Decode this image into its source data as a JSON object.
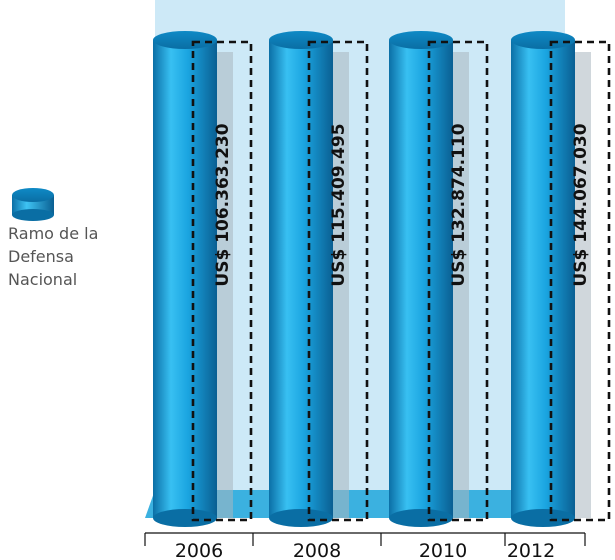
{
  "chart_data": {
    "type": "bar",
    "style": "3d-cylinder",
    "categories": [
      "2006",
      "2008",
      "2010",
      "2012"
    ],
    "series": [
      {
        "name": "Ramo de la Defensa Nacional",
        "values": [
          106363230,
          115409495,
          132874110,
          144067030
        ],
        "color": "#1aa4e0"
      }
    ],
    "data_labels": [
      "US$ 106.363.230",
      "US$ 115.409.495",
      "US$ 132.874.110",
      "US$ 144.067.030"
    ],
    "legend": {
      "entries": [
        "Ramo de la Defensa Nacional"
      ],
      "lines": [
        "Ramo de la",
        "Defensa",
        "Nacional"
      ],
      "position": "left"
    },
    "grid": false,
    "colors": {
      "cylinder": "#1aa4e0",
      "cylinder_top": "#0d7fb8",
      "back_wall": "#cde9f7",
      "floor": "#3bb1e0",
      "label_box_border": "#111111"
    }
  }
}
